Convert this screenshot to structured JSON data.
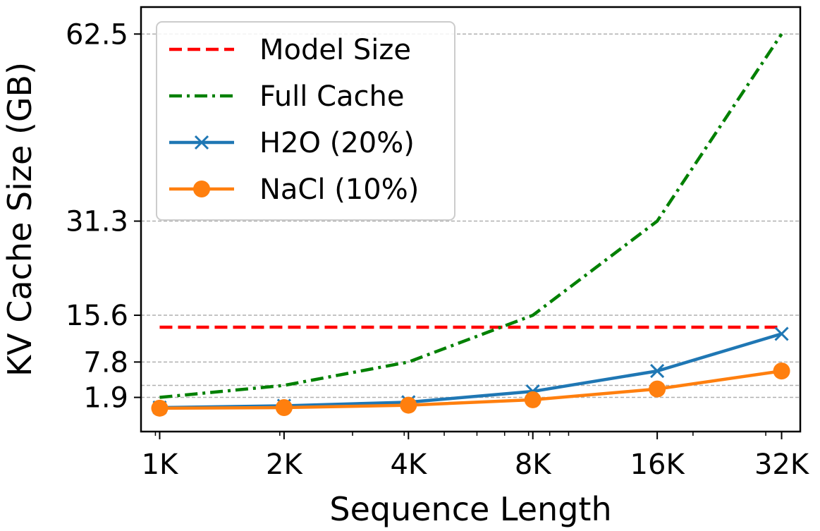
{
  "chart_data": {
    "type": "line",
    "title": "",
    "xlabel": "Sequence Length",
    "ylabel": "KV Cache Size (GB)",
    "x_scale": "log2",
    "x": [
      1024,
      2048,
      4096,
      8192,
      16384,
      32768
    ],
    "x_tick_labels": [
      "1K",
      "2K",
      "4K",
      "8K",
      "16K",
      "32K"
    ],
    "y_ticks": [
      1.9,
      7.8,
      15.6,
      31.3,
      62.5
    ],
    "y_tick_labels": [
      "1.9",
      "7.8",
      "15.6",
      "31.3",
      "62.5"
    ],
    "y_extra_gridlines": [
      3.9
    ],
    "ylim": [
      -3.8,
      67
    ],
    "grid": "horizontal dashed",
    "legend_position": "top-left",
    "series": [
      {
        "name": "Model Size",
        "values": [
          13.6,
          13.6,
          13.6,
          13.6,
          13.6,
          13.6
        ],
        "color": "#ff0000",
        "linestyle": "dashed",
        "marker": "none"
      },
      {
        "name": "Full Cache",
        "values": [
          1.9,
          3.9,
          7.8,
          15.6,
          31.3,
          62.5
        ],
        "color": "#008000",
        "linestyle": "dashdot",
        "marker": "none"
      },
      {
        "name": "H2O (20%)",
        "values": [
          0.2,
          0.5,
          1.1,
          2.9,
          6.3,
          12.5
        ],
        "color": "#1f77b4",
        "linestyle": "solid",
        "marker": "x"
      },
      {
        "name": "NaCl (10%)",
        "values": [
          0.1,
          0.2,
          0.6,
          1.5,
          3.3,
          6.3
        ],
        "color": "#ff7f0e",
        "linestyle": "solid",
        "marker": "circle"
      }
    ]
  }
}
